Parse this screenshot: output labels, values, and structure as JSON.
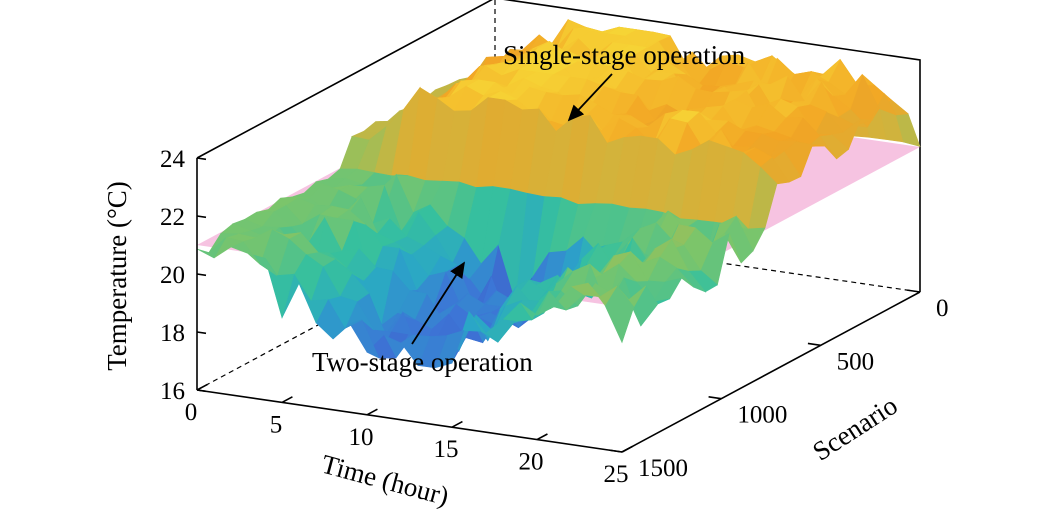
{
  "chart_data": {
    "type": "surface",
    "title": "",
    "xlabel": "Time (hour)",
    "ylabel": "Scenario",
    "zlabel": "Temperature (°C)",
    "xlim": [
      0,
      25
    ],
    "ylim": [
      0,
      1500
    ],
    "zlim": [
      16,
      24
    ],
    "x_ticks": [
      "0",
      "5",
      "10",
      "15",
      "20",
      "25"
    ],
    "y_ticks": [
      "0",
      "500",
      "1000",
      "1500"
    ],
    "z_ticks": [
      "16",
      "18",
      "20",
      "22",
      "24"
    ],
    "reference_plane": {
      "temperature": 21,
      "color": "#f4b8dc"
    },
    "colormap": [
      "#3b3aa6",
      "#3d74d6",
      "#2aa6c7",
      "#36c09e",
      "#7cc56a",
      "#d2b33c",
      "#f2a424",
      "#f7d937"
    ],
    "series": [
      {
        "name": "Single-stage operation",
        "base_temperature_hours_0_to_25": [
          21.8,
          21.9,
          22.3,
          22.9,
          23.3,
          23.5,
          23.6,
          23.7,
          23.8,
          23.8,
          23.7,
          23.6,
          23.4,
          23.3,
          23.3,
          23.3,
          23.2,
          23.3,
          23.4,
          23.3,
          23.2,
          23.2,
          23.0,
          22.9,
          22.7,
          22.6
        ]
      },
      {
        "name": "Two-stage operation",
        "base_temperature_hours_0_to_25": [
          21.0,
          21.0,
          20.9,
          20.8,
          20.7,
          20.4,
          19.8,
          19.4,
          19.0,
          18.6,
          18.4,
          18.2,
          18.1,
          18.2,
          18.5,
          18.8,
          19.4,
          19.8,
          20.2,
          20.5,
          20.7,
          20.9,
          21.0,
          21.0,
          21.0,
          21.0
        ]
      }
    ],
    "annotations": [
      {
        "text": "Single-stage operation",
        "target": "upper surface"
      },
      {
        "text": "Two-stage operation",
        "target": "lower surface"
      }
    ]
  }
}
